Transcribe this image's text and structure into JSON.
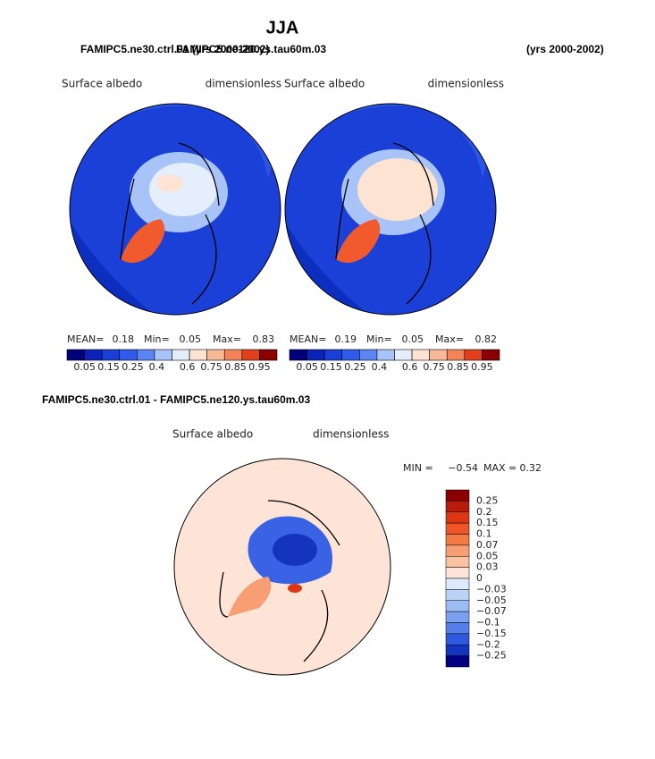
{
  "title": "JJA",
  "header": {
    "left": "FAMIPC5.ne30.ctrl.01 (yrs 2000-2002)",
    "middle": "FAMIPC5.ne120.ys.tau60m.03",
    "right": "(yrs 2000-2002)"
  },
  "panels": [
    {
      "variable": "Surface albedo",
      "units": "dimensionless",
      "mean_label": "MEAN=",
      "mean": 0.18,
      "min_label": "Min=",
      "min": 0.05,
      "max_label": "Max=",
      "max": 0.83,
      "colorbar_labels": [
        "0.05",
        "0.15",
        "0.25",
        "0.4",
        "0.6",
        "0.75",
        "0.85",
        "0.95"
      ],
      "colorbar_colors": [
        "#00007a",
        "#0a22b8",
        "#1a3fd8",
        "#2f5cec",
        "#5a85f2",
        "#a7c3f7",
        "#e4eefc",
        "#fde4d2",
        "#f9b996",
        "#f48458",
        "#e0401c",
        "#8b0000"
      ]
    },
    {
      "variable": "Surface albedo",
      "units": "dimensionless",
      "mean_label": "MEAN=",
      "mean": 0.19,
      "min_label": "Min=",
      "min": 0.05,
      "max_label": "Max=",
      "max": 0.82,
      "colorbar_labels": [
        "0.05",
        "0.15",
        "0.25",
        "0.4",
        "0.6",
        "0.75",
        "0.85",
        "0.95"
      ],
      "colorbar_colors": [
        "#00007a",
        "#0a22b8",
        "#1a3fd8",
        "#2f5cec",
        "#5a85f2",
        "#a7c3f7",
        "#e4eefc",
        "#fde4d2",
        "#f9b996",
        "#f48458",
        "#e0401c",
        "#8b0000"
      ]
    }
  ],
  "difference": {
    "title": "FAMIPC5.ne30.ctrl.01 - FAMIPC5.ne120.ys.tau60m.03",
    "variable": "Surface albedo",
    "units": "dimensionless",
    "min_label": "MIN =",
    "min": "−0.54",
    "max_label": "MAX =",
    "max": 0.32,
    "colorbar_labels": [
      "0.25",
      "0.2",
      "0.15",
      "0.1",
      "0.07",
      "0.05",
      "0.03",
      "0",
      "−0.03",
      "−0.05",
      "−0.07",
      "−0.1",
      "−0.15",
      "−0.2",
      "−0.25"
    ],
    "colorbar_colors": [
      "#8b0000",
      "#b81c0a",
      "#dc3614",
      "#f05528",
      "#f47a48",
      "#f79e74",
      "#fbc3a4",
      "#fde4d6",
      "#deeafc",
      "#bcd3f8",
      "#9cbbf4",
      "#7aa0f0",
      "#5580ea",
      "#2f58e0",
      "#1434c0",
      "#000080"
    ]
  }
}
